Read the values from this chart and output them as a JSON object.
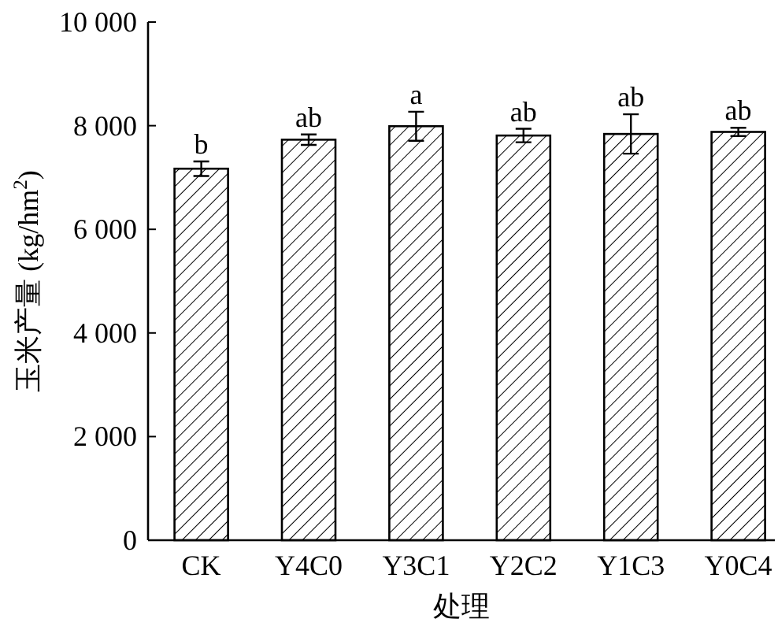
{
  "chart_data": {
    "type": "bar",
    "xlabel": "处理",
    "ylabel": "玉米产量 (kg/hm$^{2}$)",
    "categories": [
      "CK",
      "Y4C0",
      "Y3C1",
      "Y2C2",
      "Y1C3",
      "Y0C4"
    ],
    "values": [
      7170,
      7730,
      7990,
      7810,
      7840,
      7880
    ],
    "errors": [
      140,
      100,
      280,
      130,
      380,
      80
    ],
    "color": "#000000",
    "ylim": [
      0,
      10000
    ],
    "yticks": [
      0,
      {
        "value": 2000,
        "label": "2 000"
      },
      {
        "value": 4000,
        "label": "4 000"
      },
      {
        "value": 6000,
        "label": "6 000"
      },
      {
        "value": 8000,
        "label": "8 000"
      },
      {
        "value": 10000,
        "label": "10 000"
      }
    ],
    "annotations": [
      {
        "text": "b",
        "x": "CK",
        "y": 7310
      },
      {
        "text": "ab",
        "x": "Y4C0",
        "y": 7830
      },
      {
        "text": "a",
        "x": "Y3C1",
        "y": 8270
      },
      {
        "text": "ab",
        "x": "Y2C2",
        "y": 7940
      },
      {
        "text": "ab",
        "x": "Y1C3",
        "y": 8220
      },
      {
        "text": "ab",
        "x": "Y0C4",
        "y": 7960
      }
    ],
    "grid": false
  }
}
